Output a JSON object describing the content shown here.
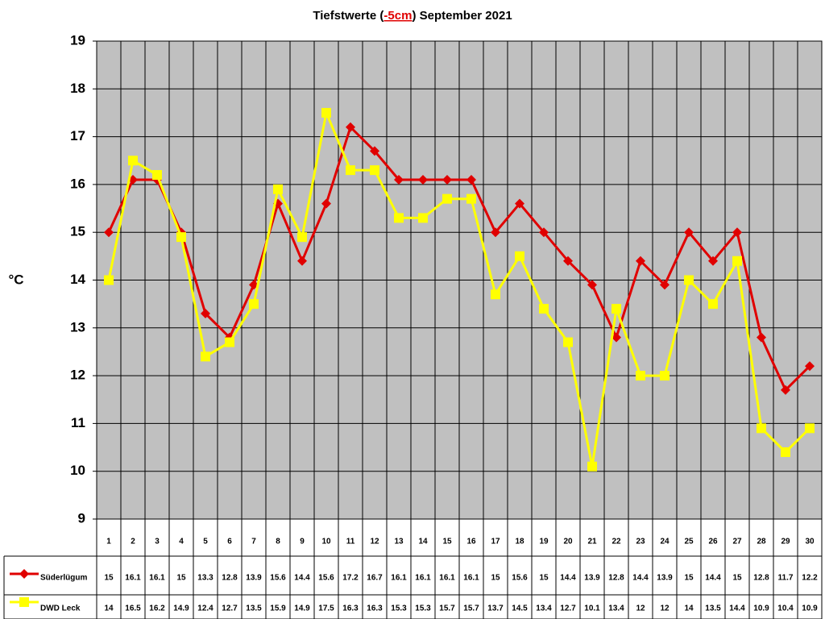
{
  "chart_data": {
    "type": "line",
    "title": [
      "Tiefstwerte (",
      "-5cm",
      ") September 2021"
    ],
    "y_label": "°C",
    "categories": [
      "1",
      "2",
      "3",
      "4",
      "5",
      "6",
      "7",
      "8",
      "9",
      "10",
      "11",
      "12",
      "13",
      "14",
      "15",
      "16",
      "17",
      "18",
      "19",
      "20",
      "21",
      "22",
      "23",
      "24",
      "25",
      "26",
      "27",
      "28",
      "29",
      "30"
    ],
    "series": [
      {
        "name": "Süderlügum",
        "color": "#e00000",
        "marker": "diamond",
        "values": [
          15,
          16.1,
          16.1,
          15,
          13.3,
          12.8,
          13.9,
          15.6,
          14.4,
          15.6,
          17.2,
          16.7,
          16.1,
          16.1,
          16.1,
          16.1,
          15,
          15.6,
          15,
          14.4,
          13.9,
          12.8,
          14.4,
          13.9,
          15,
          14.4,
          15,
          12.8,
          11.7,
          12.2
        ]
      },
      {
        "name": "DWD Leck",
        "color": "#ffff00",
        "marker": "square",
        "values": [
          14,
          16.5,
          16.2,
          14.9,
          12.4,
          12.7,
          13.5,
          15.9,
          14.9,
          17.5,
          16.3,
          16.3,
          15.3,
          15.3,
          15.7,
          15.7,
          13.7,
          14.5,
          13.4,
          12.7,
          10.1,
          13.4,
          12,
          12,
          14,
          13.5,
          14.4,
          10.9,
          10.4,
          10.9
        ]
      }
    ],
    "ylim": [
      9,
      19
    ],
    "yticks": [
      9,
      10,
      11,
      12,
      13,
      14,
      15,
      16,
      17,
      18,
      19
    ],
    "grid": true,
    "plot_background": "#c0c0c0"
  }
}
